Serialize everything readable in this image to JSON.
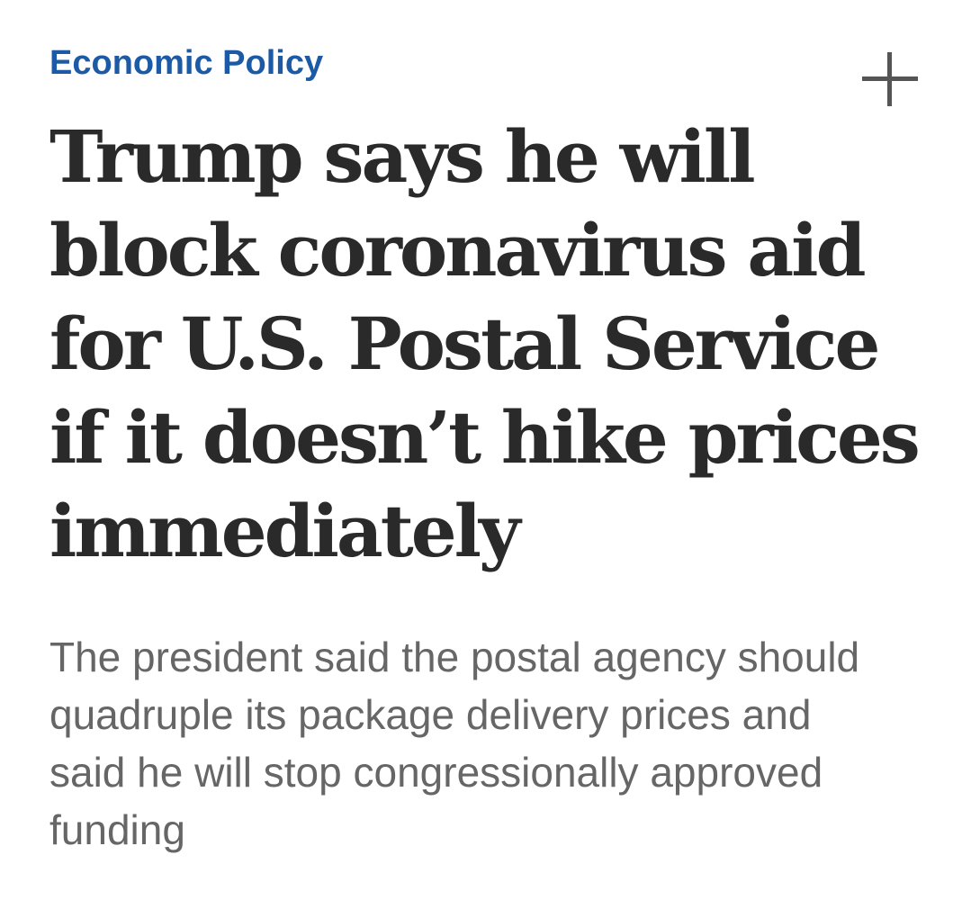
{
  "section": {
    "label": "Economic Policy"
  },
  "actions": {
    "add_icon": "plus-icon"
  },
  "headline": {
    "lines": [
      "Trump says he will",
      "block coronavirus aid",
      "for U.S. Postal Service",
      "if it doesn’t hike prices",
      "immediately"
    ]
  },
  "dek": {
    "lines": [
      "The president said the postal agency should",
      "quadruple its package delivery prices and",
      "said he will stop congressionally approved",
      "funding"
    ]
  },
  "colors": {
    "section_label": "#1d5aa6",
    "headline": "#2a2a2a",
    "dek": "#666666",
    "icon": "#555555"
  }
}
